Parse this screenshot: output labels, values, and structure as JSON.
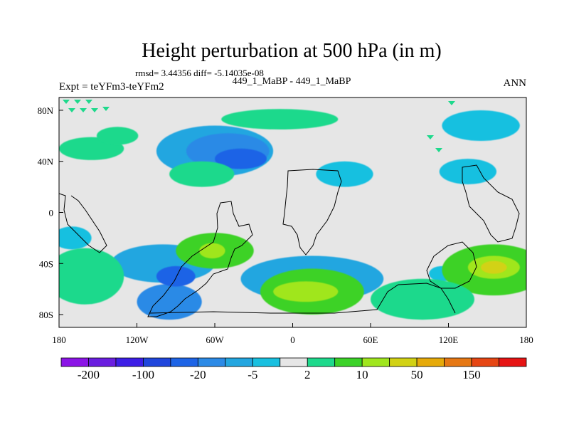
{
  "chart_data": {
    "type": "heatmap",
    "title": "Height perturbation at 500 hPa (in m)",
    "subtitle_stats": "rmsd= 3.44356 diff= -5.14035e-08",
    "left_label": "Expt = teYFm3-teYFm2",
    "center_label": "449_1_MaBP - 449_1_MaBP",
    "right_label": "ANN",
    "x_range": [
      -180,
      180
    ],
    "y_range": [
      -90,
      90
    ],
    "x_ticks": [
      {
        "value": -180,
        "label": "180"
      },
      {
        "value": -120,
        "label": "120W"
      },
      {
        "value": -60,
        "label": "60W"
      },
      {
        "value": 0,
        "label": "0"
      },
      {
        "value": 60,
        "label": "60E"
      },
      {
        "value": 120,
        "label": "120E"
      },
      {
        "value": 180,
        "label": "180"
      }
    ],
    "y_ticks": [
      {
        "value": 80,
        "label": "80N"
      },
      {
        "value": 40,
        "label": "40N"
      },
      {
        "value": 0,
        "label": "0"
      },
      {
        "value": -40,
        "label": "40S"
      },
      {
        "value": -80,
        "label": "80S"
      }
    ],
    "colorbar": {
      "colors": [
        "#8b14e6",
        "#6a1ee0",
        "#3d1ee6",
        "#2046dc",
        "#1e64e6",
        "#2c8ae6",
        "#23a6e0",
        "#19c0e0",
        "#e6e6e6",
        "#1ed98c",
        "#3cd228",
        "#a0e61e",
        "#d2d214",
        "#e6aa0a",
        "#e67814",
        "#e64614",
        "#e61414"
      ],
      "labels": [
        "-200",
        "-100",
        "-20",
        "-5",
        "2",
        "10",
        "50",
        "150"
      ]
    },
    "blobs": [
      {
        "lon": -60,
        "lat": 48,
        "level": 6,
        "rlon": 45,
        "rlat": 20
      },
      {
        "lon": -50,
        "lat": 48,
        "level": 5,
        "rlon": 32,
        "rlat": 14
      },
      {
        "lon": -40,
        "lat": 42,
        "level": 4,
        "rlon": 20,
        "rlat": 8
      },
      {
        "lon": -10,
        "lat": 73,
        "level": 9,
        "rlon": 45,
        "rlat": 8
      },
      {
        "lon": -155,
        "lat": 50,
        "level": 9,
        "rlon": 25,
        "rlat": 9
      },
      {
        "lon": -135,
        "lat": 60,
        "level": 9,
        "rlon": 16,
        "rlat": 7
      },
      {
        "lon": -70,
        "lat": 30,
        "level": 9,
        "rlon": 25,
        "rlat": 10
      },
      {
        "lon": 40,
        "lat": 30,
        "level": 7,
        "rlon": 22,
        "rlat": 10
      },
      {
        "lon": 145,
        "lat": 68,
        "level": 7,
        "rlon": 30,
        "rlat": 12
      },
      {
        "lon": 135,
        "lat": 32,
        "level": 7,
        "rlon": 22,
        "rlat": 10
      },
      {
        "lon": 15,
        "lat": -52,
        "level": 6,
        "rlon": 55,
        "rlat": 18
      },
      {
        "lon": -100,
        "lat": -40,
        "level": 6,
        "rlon": 40,
        "rlat": 15
      },
      {
        "lon": -95,
        "lat": -70,
        "level": 5,
        "rlon": 25,
        "rlat": 14
      },
      {
        "lon": -90,
        "lat": -50,
        "level": 4,
        "rlon": 15,
        "rlat": 8
      },
      {
        "lon": -170,
        "lat": -20,
        "level": 7,
        "rlon": 15,
        "rlat": 9
      },
      {
        "lon": 115,
        "lat": -48,
        "level": 7,
        "rlon": 10,
        "rlat": 6
      },
      {
        "lon": -60,
        "lat": -30,
        "level": 10,
        "rlon": 30,
        "rlat": 14
      },
      {
        "lon": -62,
        "lat": -30,
        "level": 11,
        "rlon": 10,
        "rlat": 6
      },
      {
        "lon": 15,
        "lat": -62,
        "level": 10,
        "rlon": 40,
        "rlat": 18
      },
      {
        "lon": 10,
        "lat": -62,
        "level": 11,
        "rlon": 25,
        "rlat": 8
      },
      {
        "lon": 155,
        "lat": -45,
        "level": 10,
        "rlon": 40,
        "rlat": 20
      },
      {
        "lon": 155,
        "lat": -43,
        "level": 11,
        "rlon": 20,
        "rlat": 9
      },
      {
        "lon": 155,
        "lat": -43,
        "level": 12,
        "rlon": 10,
        "rlat": 5
      },
      {
        "lon": -160,
        "lat": -50,
        "level": 9,
        "rlon": 30,
        "rlat": 22
      },
      {
        "lon": 100,
        "lat": -68,
        "level": 9,
        "rlon": 40,
        "rlat": 16
      }
    ]
  }
}
